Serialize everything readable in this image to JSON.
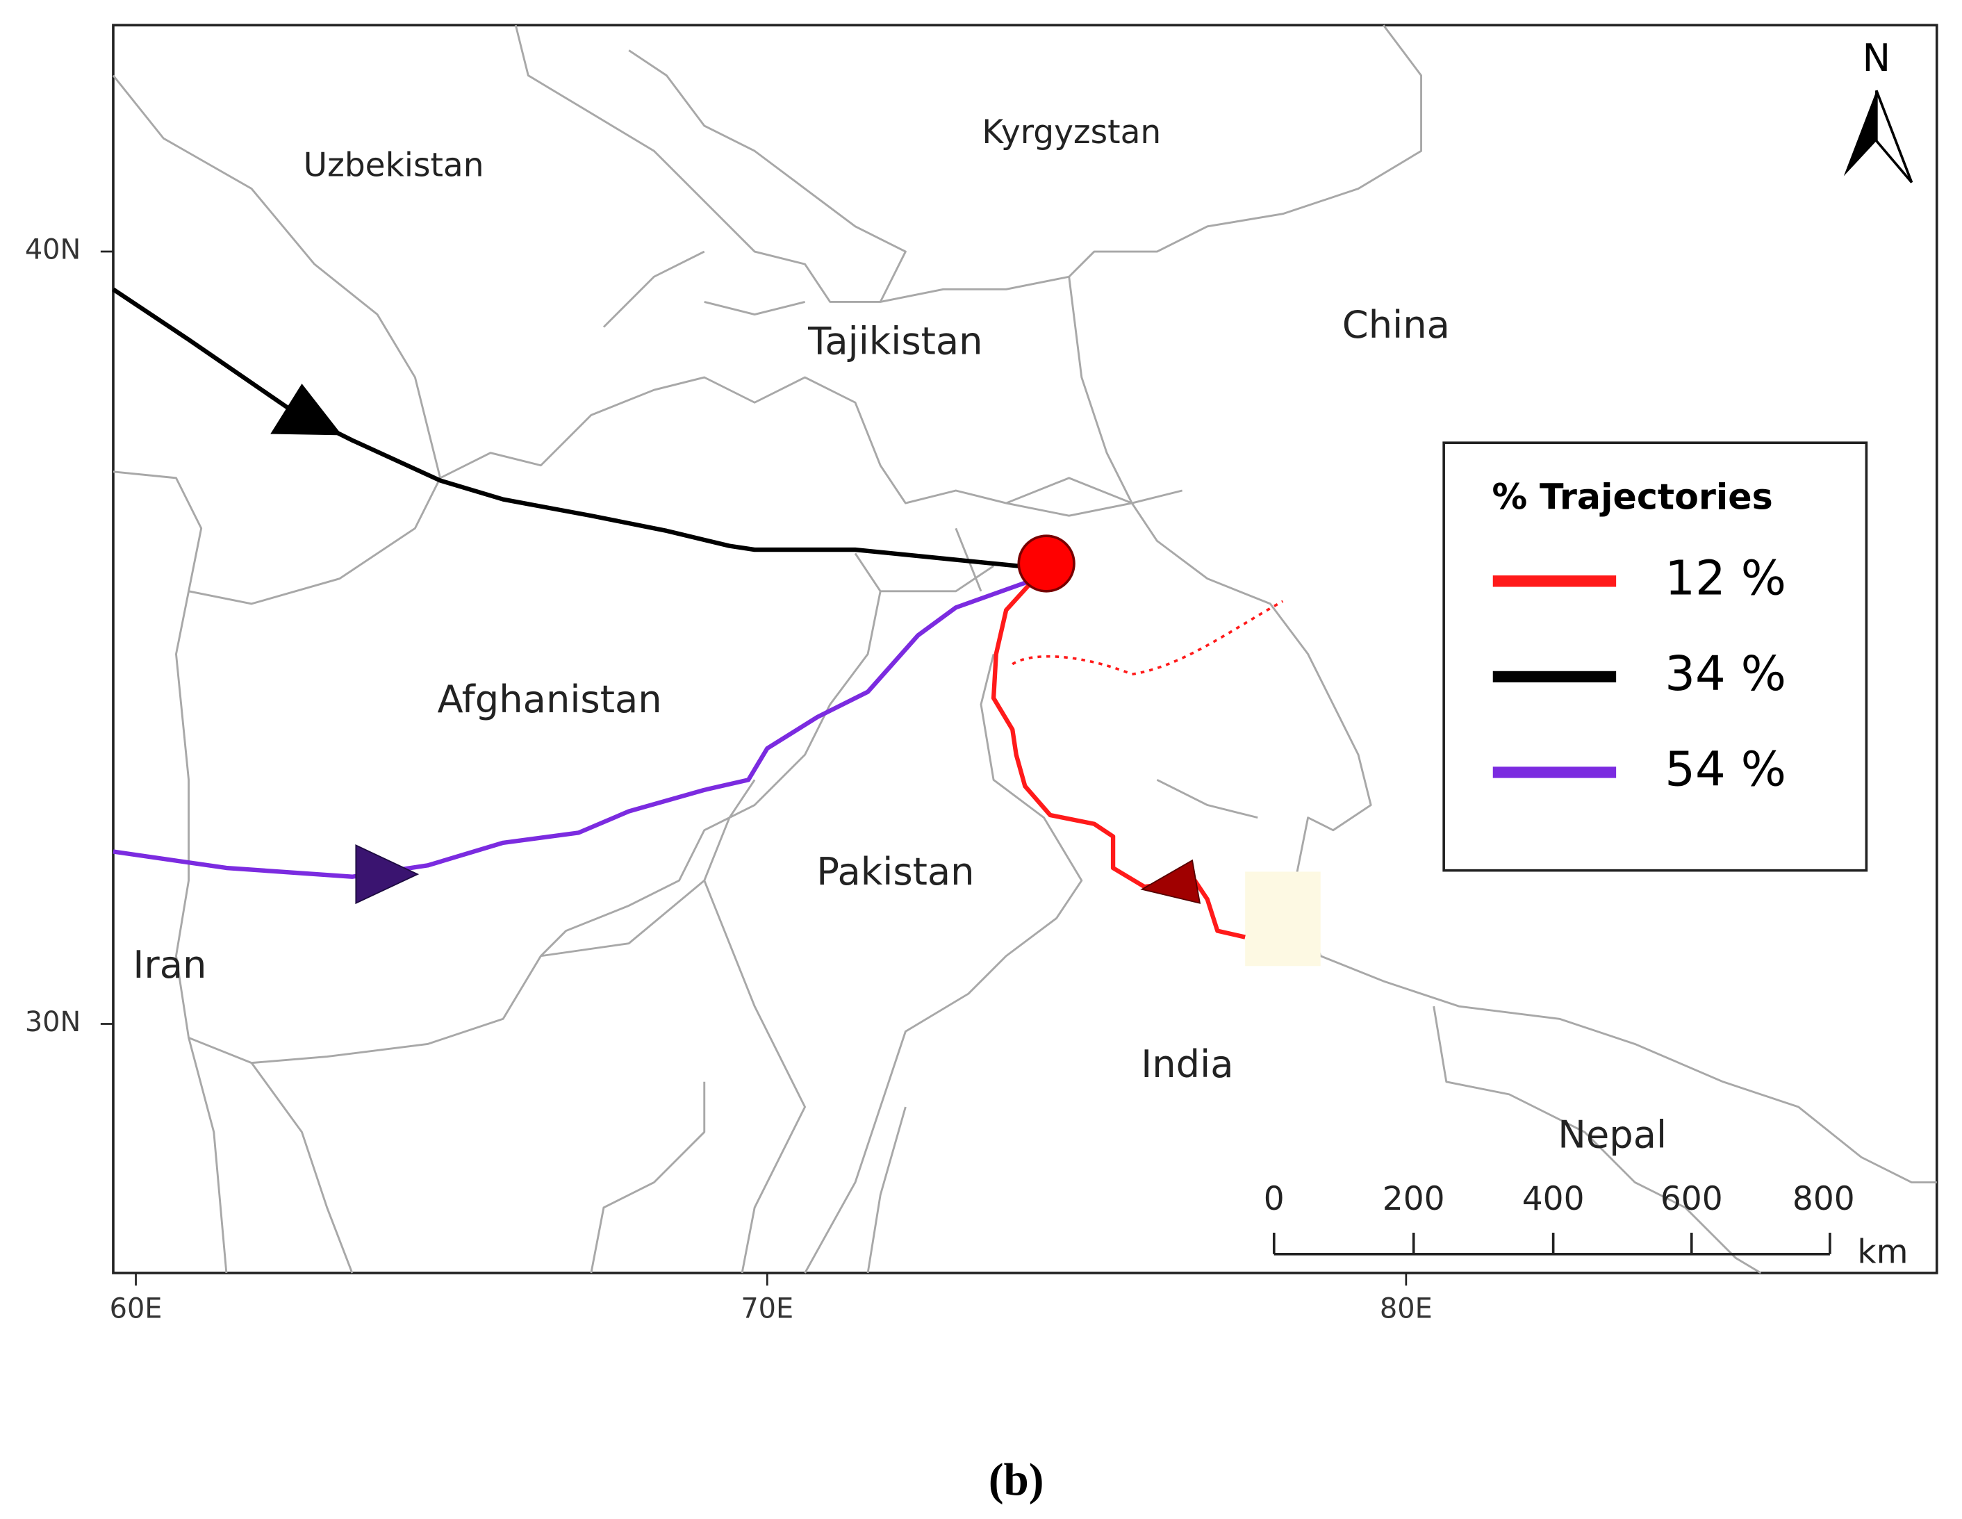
{
  "map": {
    "countries": [
      "Uzbekistan",
      "Kyrgyzstan",
      "Tajikistan",
      "China",
      "Afghanistan",
      "Pakistan",
      "Iran",
      "India",
      "Nepal"
    ],
    "lat_labels": [
      "40N",
      "30N"
    ],
    "lon_labels": [
      "60E",
      "70E",
      "80E"
    ],
    "north": "N",
    "legend": {
      "title": "% Trajectories",
      "entries": [
        {
          "label": "12 %",
          "color": "#ff1a1a"
        },
        {
          "label": "34 %",
          "color": "#000000"
        },
        {
          "label": "54 %",
          "color": "#7b2be0"
        }
      ]
    },
    "scale_bar": {
      "labels": [
        "0",
        "200",
        "400",
        "600",
        "800"
      ],
      "unit": "km"
    }
  },
  "caption": "(b)"
}
